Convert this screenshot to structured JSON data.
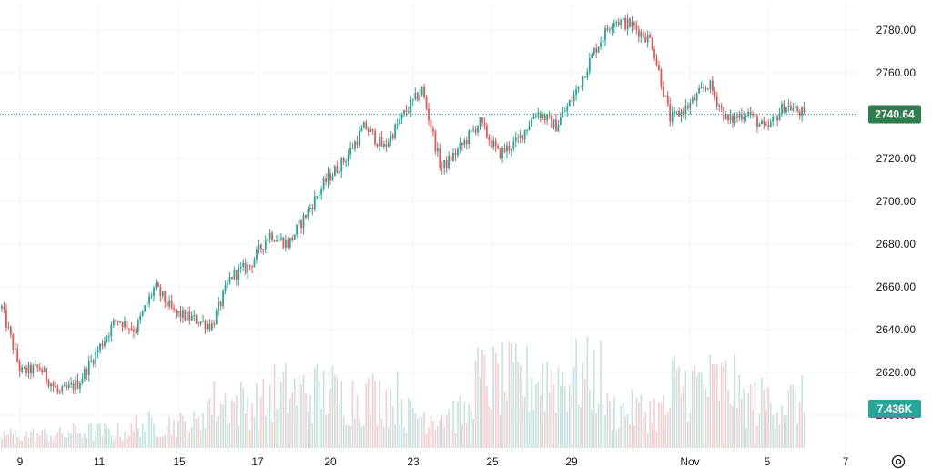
{
  "colors": {
    "up": "#26a69a",
    "down": "#ef5350",
    "up_volume": "#c4e3df",
    "down_volume": "#f8cccc",
    "grid": "#f0f3fa",
    "last_price_line": "#26a69a",
    "price_badge": "#2e7d4f",
    "volume_badge": "#26a69a",
    "text": "#131722"
  },
  "icons": {
    "settings": "gear-icon"
  },
  "chart_data": {
    "type": "candlestick",
    "y_axis": {
      "ticks": [
        "2600.00",
        "2620.00",
        "2640.00",
        "2660.00",
        "2680.00",
        "2700.00",
        "2720.00",
        "2740.00",
        "2760.00",
        "2780.00"
      ],
      "ylim": [
        2597,
        2792
      ]
    },
    "x_axis": {
      "tick_labels": [
        "9",
        "11",
        "15",
        "17",
        "20",
        "23",
        "25",
        "29",
        "Nov",
        "5",
        "7"
      ]
    },
    "grid": true,
    "last_price": {
      "value": 2740.64,
      "label": "2740.64"
    },
    "last_volume": {
      "label": "7.436K"
    },
    "price_path": [
      {
        "day": "8",
        "close": 2650
      },
      {
        "day": "8",
        "close": 2620
      },
      {
        "day": "9",
        "close": 2622
      },
      {
        "day": "9",
        "close": 2610
      },
      {
        "day": "10",
        "close": 2615
      },
      {
        "day": "10",
        "close": 2630
      },
      {
        "day": "11",
        "close": 2645
      },
      {
        "day": "11",
        "close": 2640
      },
      {
        "day": "14",
        "close": 2660
      },
      {
        "day": "14",
        "close": 2648
      },
      {
        "day": "15",
        "close": 2645
      },
      {
        "day": "15",
        "close": 2642
      },
      {
        "day": "16",
        "close": 2665
      },
      {
        "day": "16",
        "close": 2670
      },
      {
        "day": "17",
        "close": 2685
      },
      {
        "day": "17",
        "close": 2680
      },
      {
        "day": "18",
        "close": 2695
      },
      {
        "day": "18",
        "close": 2710
      },
      {
        "day": "20",
        "close": 2720
      },
      {
        "day": "20",
        "close": 2735
      },
      {
        "day": "21",
        "close": 2725
      },
      {
        "day": "22",
        "close": 2740
      },
      {
        "day": "22",
        "close": 2752
      },
      {
        "day": "23",
        "close": 2715
      },
      {
        "day": "23",
        "close": 2725
      },
      {
        "day": "24",
        "close": 2737
      },
      {
        "day": "25",
        "close": 2722
      },
      {
        "day": "25",
        "close": 2728
      },
      {
        "day": "28",
        "close": 2742
      },
      {
        "day": "28",
        "close": 2735
      },
      {
        "day": "29",
        "close": 2750
      },
      {
        "day": "29",
        "close": 2770
      },
      {
        "day": "30",
        "close": 2785
      },
      {
        "day": "31",
        "close": 2782
      },
      {
        "day": "31",
        "close": 2775
      },
      {
        "day": "Nov",
        "close": 2738
      },
      {
        "day": "1",
        "close": 2745
      },
      {
        "day": "1",
        "close": 2755
      },
      {
        "day": "4",
        "close": 2737
      },
      {
        "day": "4",
        "close": 2742
      },
      {
        "day": "5",
        "close": 2733
      },
      {
        "day": "5",
        "close": 2745
      },
      {
        "day": "6",
        "close": 2740.64
      }
    ],
    "volume_relative_levels": [
      0.18,
      0.22,
      0.32,
      0.6,
      0.75,
      0.68,
      0.45,
      0.9,
      0.95,
      0.5,
      0.85,
      0.62
    ]
  }
}
